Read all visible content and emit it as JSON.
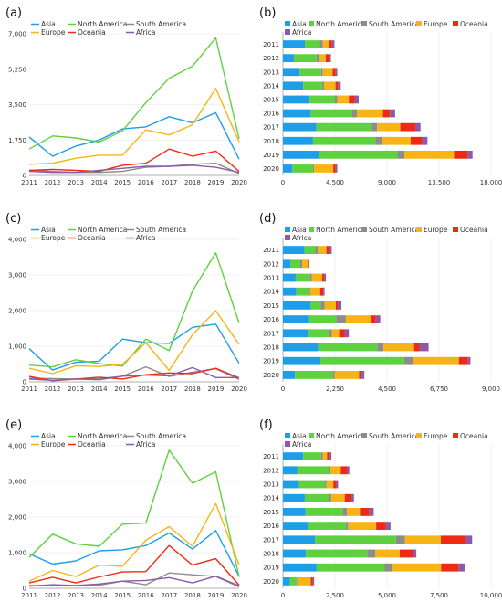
{
  "colors": {
    "Asia": "#1e9ee8",
    "North America": "#5fd13e",
    "South America": "#8c8c8c",
    "Europe": "#f7b515",
    "Oceania": "#ee2a12",
    "Africa": "#8e5aa8"
  },
  "chart_data": [
    {
      "id": "a",
      "panel_label": "(a)",
      "type": "line",
      "x": [
        2011,
        2012,
        2013,
        2014,
        2015,
        2016,
        2017,
        2018,
        2019,
        2020
      ],
      "ylim": [
        0,
        7000
      ],
      "yticks": [
        0,
        1750,
        3500,
        5250,
        7000
      ],
      "yticklabels": [
        "0",
        "1,750",
        "3,500",
        "5,250",
        "7,000"
      ],
      "legend_position": "top-left",
      "series": [
        {
          "name": "Asia",
          "values": [
            1900,
            950,
            1450,
            1750,
            2300,
            2400,
            2900,
            2600,
            3100,
            800
          ]
        },
        {
          "name": "North America",
          "values": [
            1300,
            1950,
            1850,
            1650,
            2200,
            3600,
            4800,
            5400,
            6800,
            1800
          ]
        },
        {
          "name": "South America",
          "values": [
            250,
            200,
            150,
            150,
            200,
            400,
            450,
            550,
            600,
            100
          ]
        },
        {
          "name": "Europe",
          "values": [
            550,
            600,
            850,
            1000,
            1000,
            2250,
            2000,
            2500,
            4300,
            1650
          ]
        },
        {
          "name": "Oceania",
          "values": [
            250,
            300,
            250,
            200,
            500,
            600,
            1300,
            950,
            1200,
            200
          ]
        },
        {
          "name": "Africa",
          "values": [
            200,
            150,
            150,
            250,
            350,
            450,
            450,
            500,
            400,
            150
          ]
        }
      ]
    },
    {
      "id": "b",
      "panel_label": "(b)",
      "type": "bar",
      "orientation": "horizontal",
      "stacked": true,
      "categories": [
        "2011",
        "2012",
        "2013",
        "2014",
        "2015",
        "2016",
        "2017",
        "2018",
        "2019",
        "2020"
      ],
      "xlim": [
        0,
        18000
      ],
      "xticks": [
        0,
        4500,
        9000,
        13500,
        18000
      ],
      "xticklabels": [
        "0",
        "4,500",
        "9,000",
        "13,500",
        "18,000"
      ],
      "legend_position": "top-left",
      "series": [
        {
          "name": "Asia",
          "values": [
            1900,
            950,
            1450,
            1750,
            2300,
            2400,
            2900,
            2600,
            3100,
            800
          ]
        },
        {
          "name": "North America",
          "values": [
            1300,
            1950,
            1850,
            1650,
            2200,
            3600,
            4800,
            5400,
            6800,
            1800
          ]
        },
        {
          "name": "South America",
          "values": [
            250,
            200,
            150,
            150,
            200,
            400,
            450,
            550,
            600,
            100
          ]
        },
        {
          "name": "Europe",
          "values": [
            550,
            600,
            850,
            1000,
            1000,
            2250,
            2000,
            2500,
            4300,
            1650
          ]
        },
        {
          "name": "Oceania",
          "values": [
            250,
            300,
            250,
            200,
            500,
            600,
            1300,
            950,
            1200,
            200
          ]
        },
        {
          "name": "Africa",
          "values": [
            200,
            150,
            150,
            250,
            350,
            450,
            450,
            500,
            400,
            150
          ]
        }
      ]
    },
    {
      "id": "c",
      "panel_label": "(c)",
      "type": "line",
      "x": [
        2011,
        2012,
        2013,
        2014,
        2015,
        2016,
        2017,
        2018,
        2019,
        2020
      ],
      "ylim": [
        0,
        4000
      ],
      "yticks": [
        0,
        1000,
        2000,
        3000,
        4000
      ],
      "yticklabels": [
        "0",
        "1,000",
        "2,000",
        "3,000",
        "4,000"
      ],
      "legend_position": "top-left",
      "series": [
        {
          "name": "Asia",
          "values": [
            930,
            330,
            550,
            580,
            1200,
            1100,
            1080,
            1530,
            1620,
            520
          ]
        },
        {
          "name": "North America",
          "values": [
            470,
            420,
            620,
            510,
            440,
            1200,
            880,
            2550,
            3620,
            1650
          ]
        },
        {
          "name": "South America",
          "values": [
            100,
            90,
            80,
            90,
            160,
            420,
            150,
            270,
            370,
            70
          ]
        },
        {
          "name": "Europe",
          "values": [
            380,
            230,
            450,
            430,
            490,
            1100,
            320,
            1320,
            2000,
            1050
          ]
        },
        {
          "name": "Oceania",
          "values": [
            150,
            30,
            80,
            130,
            80,
            200,
            250,
            230,
            380,
            110
          ]
        },
        {
          "name": "Africa",
          "values": [
            80,
            40,
            80,
            60,
            160,
            190,
            170,
            400,
            120,
            120
          ]
        }
      ]
    },
    {
      "id": "d",
      "panel_label": "(d)",
      "type": "bar",
      "orientation": "horizontal",
      "stacked": true,
      "categories": [
        "2011",
        "2012",
        "2013",
        "2014",
        "2015",
        "2016",
        "2017",
        "2018",
        "2019",
        "2020"
      ],
      "xlim": [
        0,
        9000
      ],
      "xticks": [
        0,
        2250,
        4500,
        6750,
        9000
      ],
      "xticklabels": [
        "0",
        "2,250",
        "4,500",
        "6,750",
        "9,000"
      ],
      "legend_position": "top-left",
      "series": [
        {
          "name": "Asia",
          "values": [
            930,
            330,
            550,
            580,
            1200,
            1100,
            1080,
            1530,
            1620,
            520
          ]
        },
        {
          "name": "North America",
          "values": [
            470,
            420,
            620,
            510,
            440,
            1200,
            880,
            2550,
            3620,
            1650
          ]
        },
        {
          "name": "South America",
          "values": [
            100,
            90,
            80,
            90,
            160,
            420,
            150,
            270,
            370,
            70
          ]
        },
        {
          "name": "Europe",
          "values": [
            380,
            230,
            450,
            430,
            490,
            1100,
            320,
            1320,
            2000,
            1050
          ]
        },
        {
          "name": "Oceania",
          "values": [
            150,
            30,
            80,
            130,
            80,
            200,
            250,
            230,
            380,
            110
          ]
        },
        {
          "name": "Africa",
          "values": [
            80,
            40,
            80,
            60,
            160,
            190,
            170,
            400,
            120,
            120
          ]
        }
      ]
    },
    {
      "id": "e",
      "panel_label": "(e)",
      "type": "line",
      "x": [
        2011,
        2012,
        2013,
        2014,
        2015,
        2016,
        2017,
        2018,
        2019,
        2020
      ],
      "ylim": [
        0,
        4000
      ],
      "yticks": [
        0,
        1000,
        2000,
        3000,
        4000
      ],
      "yticklabels": [
        "0",
        "1,000",
        "2,000",
        "3,000",
        "4,000"
      ],
      "legend_position": "top-left",
      "series": [
        {
          "name": "Asia",
          "values": [
            970,
            680,
            770,
            1050,
            1080,
            1200,
            1550,
            1100,
            1620,
            330
          ]
        },
        {
          "name": "North America",
          "values": [
            870,
            1520,
            1250,
            1180,
            1800,
            1830,
            3880,
            2950,
            3270,
            320
          ]
        },
        {
          "name": "South America",
          "values": [
            80,
            80,
            70,
            90,
            200,
            100,
            430,
            380,
            330,
            40
          ]
        },
        {
          "name": "Europe",
          "values": [
            200,
            500,
            330,
            650,
            620,
            1350,
            1730,
            1180,
            2380,
            650
          ]
        },
        {
          "name": "Oceania",
          "values": [
            150,
            310,
            150,
            320,
            460,
            470,
            1200,
            650,
            830,
            90
          ]
        },
        {
          "name": "Africa",
          "values": [
            60,
            100,
            80,
            120,
            200,
            220,
            300,
            150,
            340,
            70
          ]
        }
      ]
    },
    {
      "id": "f",
      "panel_label": "(f)",
      "type": "bar",
      "orientation": "horizontal",
      "stacked": true,
      "categories": [
        "2011",
        "2012",
        "2013",
        "2014",
        "2015",
        "2016",
        "2017",
        "2018",
        "2019",
        "2020"
      ],
      "xlim": [
        0,
        10000
      ],
      "xticks": [
        0,
        2500,
        5000,
        7500,
        10000
      ],
      "xticklabels": [
        "0",
        "2,500",
        "5,000",
        "7,500",
        "10,000"
      ],
      "legend_position": "top-left",
      "series": [
        {
          "name": "Asia",
          "values": [
            970,
            680,
            770,
            1050,
            1080,
            1200,
            1550,
            1100,
            1620,
            330
          ]
        },
        {
          "name": "North America",
          "values": [
            870,
            1520,
            1250,
            1180,
            1800,
            1830,
            3880,
            2950,
            3270,
            320
          ]
        },
        {
          "name": "South America",
          "values": [
            80,
            80,
            70,
            90,
            200,
            100,
            430,
            380,
            330,
            40
          ]
        },
        {
          "name": "Europe",
          "values": [
            200,
            500,
            330,
            650,
            620,
            1350,
            1730,
            1180,
            2380,
            650
          ]
        },
        {
          "name": "Oceania",
          "values": [
            150,
            310,
            150,
            320,
            460,
            470,
            1200,
            650,
            830,
            90
          ]
        },
        {
          "name": "Africa",
          "values": [
            60,
            100,
            80,
            120,
            200,
            220,
            300,
            150,
            340,
            70
          ]
        }
      ]
    }
  ]
}
